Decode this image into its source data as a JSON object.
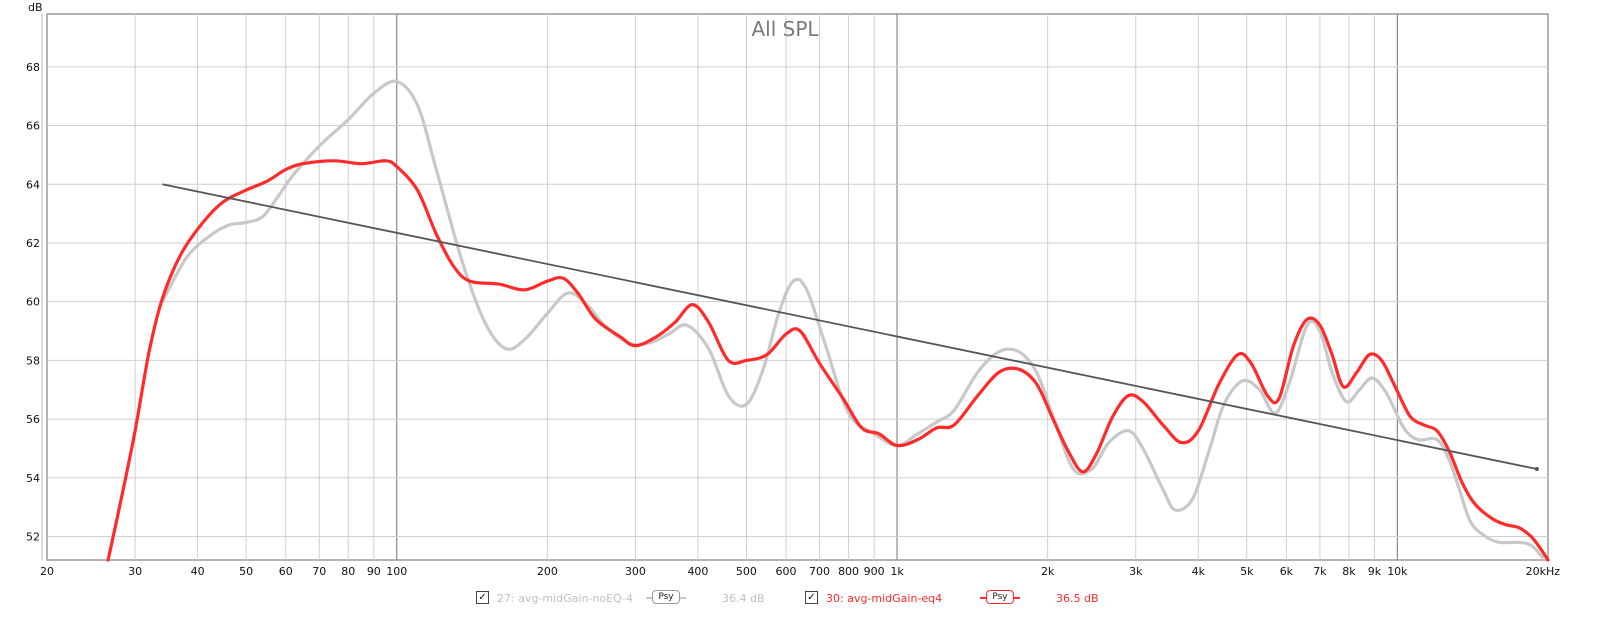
{
  "chart_data": {
    "type": "line",
    "title": "All SPL",
    "ylabel": "dB",
    "x_scale": "log",
    "xlim": [
      20,
      20000
    ],
    "ylim": [
      51.2,
      69.8
    ],
    "grid": true,
    "y_ticks": [
      52,
      54,
      56,
      58,
      60,
      62,
      64,
      66,
      68
    ],
    "x_ticks": [
      {
        "v": 20,
        "label": "20"
      },
      {
        "v": 30,
        "label": "30"
      },
      {
        "v": 40,
        "label": "40"
      },
      {
        "v": 50,
        "label": "50"
      },
      {
        "v": 60,
        "label": "60"
      },
      {
        "v": 70,
        "label": "70"
      },
      {
        "v": 80,
        "label": "80"
      },
      {
        "v": 90,
        "label": "90"
      },
      {
        "v": 100,
        "label": "100"
      },
      {
        "v": 200,
        "label": "200"
      },
      {
        "v": 300,
        "label": "300"
      },
      {
        "v": 400,
        "label": "400"
      },
      {
        "v": 500,
        "label": "500"
      },
      {
        "v": 600,
        "label": "600"
      },
      {
        "v": 700,
        "label": "700"
      },
      {
        "v": 800,
        "label": "800"
      },
      {
        "v": 900,
        "label": "900"
      },
      {
        "v": 1000,
        "label": "1k"
      },
      {
        "v": 2000,
        "label": "2k"
      },
      {
        "v": 3000,
        "label": "3k"
      },
      {
        "v": 4000,
        "label": "4k"
      },
      {
        "v": 5000,
        "label": "5k"
      },
      {
        "v": 6000,
        "label": "6k"
      },
      {
        "v": 7000,
        "label": "7k"
      },
      {
        "v": 8000,
        "label": "8k"
      },
      {
        "v": 9000,
        "label": "9k"
      },
      {
        "v": 10000,
        "label": "10k"
      },
      {
        "v": 20000,
        "label": "20kHz"
      }
    ],
    "series": [
      {
        "name": "27: avg-midGain-noEQ-4",
        "color": "#c8c8c8",
        "level": "36.4 dB",
        "points": [
          [
            34,
            60.0
          ],
          [
            38,
            61.5
          ],
          [
            42,
            62.2
          ],
          [
            46,
            62.6
          ],
          [
            50,
            62.7
          ],
          [
            54,
            62.9
          ],
          [
            58,
            63.6
          ],
          [
            62,
            64.3
          ],
          [
            70,
            65.3
          ],
          [
            80,
            66.2
          ],
          [
            90,
            67.1
          ],
          [
            100,
            67.5
          ],
          [
            110,
            66.7
          ],
          [
            120,
            64.5
          ],
          [
            135,
            61.4
          ],
          [
            150,
            59.3
          ],
          [
            165,
            58.4
          ],
          [
            180,
            58.7
          ],
          [
            200,
            59.6
          ],
          [
            220,
            60.3
          ],
          [
            240,
            59.9
          ],
          [
            260,
            59.2
          ],
          [
            290,
            58.6
          ],
          [
            320,
            58.6
          ],
          [
            350,
            58.9
          ],
          [
            380,
            59.2
          ],
          [
            420,
            58.4
          ],
          [
            460,
            56.8
          ],
          [
            500,
            56.5
          ],
          [
            540,
            57.7
          ],
          [
            580,
            59.6
          ],
          [
            620,
            60.7
          ],
          [
            660,
            60.4
          ],
          [
            720,
            58.5
          ],
          [
            800,
            56.2
          ],
          [
            900,
            55.5
          ],
          [
            1000,
            55.1
          ],
          [
            1100,
            55.5
          ],
          [
            1200,
            55.9
          ],
          [
            1300,
            56.3
          ],
          [
            1450,
            57.6
          ],
          [
            1600,
            58.3
          ],
          [
            1750,
            58.3
          ],
          [
            1900,
            57.6
          ],
          [
            2050,
            56.1
          ],
          [
            2250,
            54.3
          ],
          [
            2450,
            54.3
          ],
          [
            2650,
            55.2
          ],
          [
            2900,
            55.6
          ],
          [
            3100,
            55.0
          ],
          [
            3400,
            53.6
          ],
          [
            3600,
            52.9
          ],
          [
            3900,
            53.3
          ],
          [
            4200,
            54.9
          ],
          [
            4500,
            56.5
          ],
          [
            4900,
            57.3
          ],
          [
            5300,
            57.0
          ],
          [
            5700,
            56.2
          ],
          [
            6100,
            57.3
          ],
          [
            6600,
            59.2
          ],
          [
            7000,
            59.0
          ],
          [
            7400,
            57.6
          ],
          [
            7900,
            56.6
          ],
          [
            8400,
            57.0
          ],
          [
            8900,
            57.4
          ],
          [
            9500,
            56.9
          ],
          [
            10300,
            55.7
          ],
          [
            11000,
            55.3
          ],
          [
            12000,
            55.3
          ],
          [
            12700,
            54.6
          ],
          [
            13300,
            53.6
          ],
          [
            14000,
            52.5
          ],
          [
            15000,
            52.0
          ],
          [
            16000,
            51.8
          ],
          [
            17500,
            51.8
          ],
          [
            18500,
            51.7
          ],
          [
            19500,
            51.3
          ]
        ]
      },
      {
        "name": "30: avg-midGain-eq4",
        "color": "#ff2b2b",
        "level": "36.5 dB",
        "points": [
          [
            26.5,
            51.2
          ],
          [
            28,
            53.1
          ],
          [
            30,
            55.6
          ],
          [
            32,
            58.3
          ],
          [
            34,
            60.1
          ],
          [
            37,
            61.6
          ],
          [
            41,
            62.7
          ],
          [
            45,
            63.4
          ],
          [
            50,
            63.8
          ],
          [
            55,
            64.1
          ],
          [
            60,
            64.5
          ],
          [
            65,
            64.7
          ],
          [
            75,
            64.8
          ],
          [
            85,
            64.7
          ],
          [
            95,
            64.8
          ],
          [
            100,
            64.6
          ],
          [
            110,
            63.8
          ],
          [
            120,
            62.3
          ],
          [
            130,
            61.2
          ],
          [
            140,
            60.7
          ],
          [
            160,
            60.6
          ],
          [
            180,
            60.4
          ],
          [
            200,
            60.7
          ],
          [
            215,
            60.8
          ],
          [
            230,
            60.3
          ],
          [
            250,
            59.4
          ],
          [
            280,
            58.8
          ],
          [
            300,
            58.5
          ],
          [
            330,
            58.8
          ],
          [
            360,
            59.3
          ],
          [
            390,
            59.9
          ],
          [
            420,
            59.3
          ],
          [
            460,
            58.0
          ],
          [
            500,
            58.0
          ],
          [
            550,
            58.2
          ],
          [
            600,
            58.9
          ],
          [
            640,
            59.0
          ],
          [
            700,
            57.9
          ],
          [
            780,
            56.7
          ],
          [
            850,
            55.7
          ],
          [
            920,
            55.5
          ],
          [
            1000,
            55.1
          ],
          [
            1100,
            55.3
          ],
          [
            1200,
            55.7
          ],
          [
            1300,
            55.8
          ],
          [
            1450,
            56.8
          ],
          [
            1600,
            57.6
          ],
          [
            1750,
            57.7
          ],
          [
            1900,
            57.2
          ],
          [
            2050,
            56.0
          ],
          [
            2200,
            54.9
          ],
          [
            2350,
            54.2
          ],
          [
            2500,
            54.8
          ],
          [
            2700,
            56.1
          ],
          [
            2900,
            56.8
          ],
          [
            3100,
            56.6
          ],
          [
            3400,
            55.8
          ],
          [
            3700,
            55.2
          ],
          [
            4000,
            55.6
          ],
          [
            4400,
            57.2
          ],
          [
            4800,
            58.2
          ],
          [
            5100,
            57.9
          ],
          [
            5500,
            56.8
          ],
          [
            5800,
            56.7
          ],
          [
            6200,
            58.5
          ],
          [
            6600,
            59.4
          ],
          [
            7000,
            59.2
          ],
          [
            7400,
            58.2
          ],
          [
            7800,
            57.1
          ],
          [
            8300,
            57.6
          ],
          [
            8800,
            58.2
          ],
          [
            9300,
            58.0
          ],
          [
            9900,
            57.1
          ],
          [
            10600,
            56.1
          ],
          [
            11300,
            55.8
          ],
          [
            12000,
            55.6
          ],
          [
            12700,
            54.9
          ],
          [
            13500,
            53.8
          ],
          [
            14300,
            53.1
          ],
          [
            15500,
            52.6
          ],
          [
            16500,
            52.4
          ],
          [
            17500,
            52.3
          ],
          [
            18500,
            52.0
          ],
          [
            19300,
            51.6
          ],
          [
            20000,
            51.2
          ]
        ]
      }
    ],
    "trend_line": {
      "color": "#555555",
      "from": [
        34,
        64.0
      ],
      "to": [
        19000,
        54.3
      ]
    }
  },
  "legend": {
    "items": [
      {
        "checkbox": "✓",
        "label": "27: avg-midGain-noEQ-4",
        "psy_label": "Psy",
        "value": "36.4 dB",
        "color": "#c0c0c0"
      },
      {
        "checkbox": "✓",
        "label": "30: avg-midGain-eq4",
        "psy_label": "Psy",
        "value": "36.5 dB",
        "color": "#ff2b2b"
      }
    ]
  }
}
